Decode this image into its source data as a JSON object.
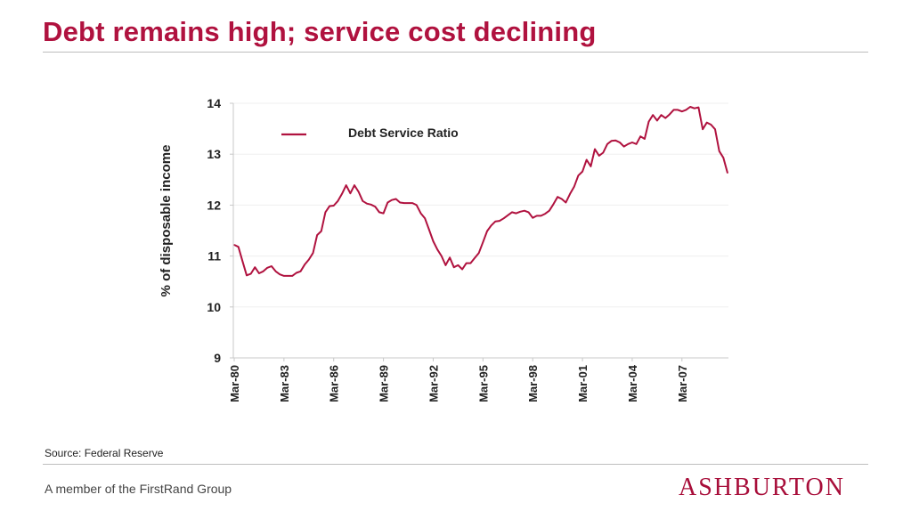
{
  "page": {
    "title": "Debt remains high; service cost declining",
    "source": "Source: Federal Reserve",
    "footer": "A member of the FirstRand Group",
    "logo": "ASHBURTON",
    "accent_color": "#b0123f"
  },
  "chart_data": {
    "type": "line",
    "ylabel": "% of disposable income",
    "xlabel": "",
    "ylim": [
      9,
      14
    ],
    "yticks": [
      9,
      10,
      11,
      12,
      13,
      14
    ],
    "xticks": [
      "Mar-80",
      "Mar-83",
      "Mar-86",
      "Mar-89",
      "Mar-92",
      "Mar-95",
      "Mar-98",
      "Mar-01",
      "Mar-04",
      "Mar-07"
    ],
    "grid": true,
    "legend": "top-left inside plot",
    "x_range": [
      "1980Q1",
      "2009Q4"
    ],
    "series": [
      {
        "name": "Debt Service Ratio",
        "color": "#b0123f",
        "x": [
          "1980Q1",
          "1980Q2",
          "1980Q3",
          "1980Q4",
          "1981Q1",
          "1981Q2",
          "1981Q3",
          "1981Q4",
          "1982Q1",
          "1982Q2",
          "1982Q3",
          "1982Q4",
          "1983Q1",
          "1983Q2",
          "1983Q3",
          "1983Q4",
          "1984Q1",
          "1984Q2",
          "1984Q3",
          "1984Q4",
          "1985Q1",
          "1985Q2",
          "1985Q3",
          "1985Q4",
          "1986Q1",
          "1986Q2",
          "1986Q3",
          "1986Q4",
          "1987Q1",
          "1987Q2",
          "1987Q3",
          "1987Q4",
          "1988Q1",
          "1988Q2",
          "1988Q3",
          "1988Q4",
          "1989Q1",
          "1989Q2",
          "1989Q3",
          "1989Q4",
          "1990Q1",
          "1990Q2",
          "1990Q3",
          "1990Q4",
          "1991Q1",
          "1991Q2",
          "1991Q3",
          "1991Q4",
          "1992Q1",
          "1992Q2",
          "1992Q3",
          "1992Q4",
          "1993Q1",
          "1993Q2",
          "1993Q3",
          "1993Q4",
          "1994Q1",
          "1994Q2",
          "1994Q3",
          "1994Q4",
          "1995Q1",
          "1995Q2",
          "1995Q3",
          "1995Q4",
          "1996Q1",
          "1996Q2",
          "1996Q3",
          "1996Q4",
          "1997Q1",
          "1997Q2",
          "1997Q3",
          "1997Q4",
          "1998Q1",
          "1998Q2",
          "1998Q3",
          "1998Q4",
          "1999Q1",
          "1999Q2",
          "1999Q3",
          "1999Q4",
          "2000Q1",
          "2000Q2",
          "2000Q3",
          "2000Q4",
          "2001Q1",
          "2001Q2",
          "2001Q3",
          "2001Q4",
          "2002Q1",
          "2002Q2",
          "2002Q3",
          "2002Q4",
          "2003Q1",
          "2003Q2",
          "2003Q3",
          "2003Q4",
          "2004Q1",
          "2004Q2",
          "2004Q3",
          "2004Q4",
          "2005Q1",
          "2005Q2",
          "2005Q3",
          "2005Q4",
          "2006Q1",
          "2006Q2",
          "2006Q3",
          "2006Q4",
          "2007Q1",
          "2007Q2",
          "2007Q3",
          "2007Q4",
          "2008Q1",
          "2008Q2",
          "2008Q3",
          "2008Q4",
          "2009Q1",
          "2009Q2",
          "2009Q3",
          "2009Q4"
        ],
        "values": [
          11.22,
          11.18,
          10.9,
          10.62,
          10.65,
          10.78,
          10.66,
          10.7,
          10.77,
          10.8,
          10.7,
          10.64,
          10.61,
          10.61,
          10.61,
          10.67,
          10.7,
          10.83,
          10.93,
          11.06,
          11.41,
          11.49,
          11.86,
          11.98,
          11.99,
          12.08,
          12.22,
          12.39,
          12.23,
          12.39,
          12.26,
          12.08,
          12.03,
          12.01,
          11.97,
          11.86,
          11.84,
          12.05,
          12.1,
          12.12,
          12.05,
          12.04,
          12.04,
          12.04,
          12.0,
          11.84,
          11.74,
          11.52,
          11.29,
          11.13,
          11.0,
          10.82,
          10.97,
          10.78,
          10.82,
          10.74,
          10.86,
          10.86,
          10.96,
          11.06,
          11.27,
          11.49,
          11.6,
          11.68,
          11.69,
          11.74,
          11.8,
          11.86,
          11.84,
          11.87,
          11.89,
          11.86,
          11.75,
          11.79,
          11.79,
          11.83,
          11.89,
          12.02,
          12.16,
          12.12,
          12.05,
          12.22,
          12.36,
          12.58,
          12.66,
          12.89,
          12.76,
          13.1,
          12.97,
          13.03,
          13.2,
          13.26,
          13.27,
          13.23,
          13.15,
          13.2,
          13.23,
          13.2,
          13.35,
          13.3,
          13.64,
          13.77,
          13.66,
          13.77,
          13.71,
          13.78,
          13.87,
          13.87,
          13.84,
          13.87,
          13.93,
          13.9,
          13.92,
          13.49,
          13.62,
          13.58,
          13.49,
          13.06,
          12.93,
          12.63
        ]
      }
    ]
  }
}
